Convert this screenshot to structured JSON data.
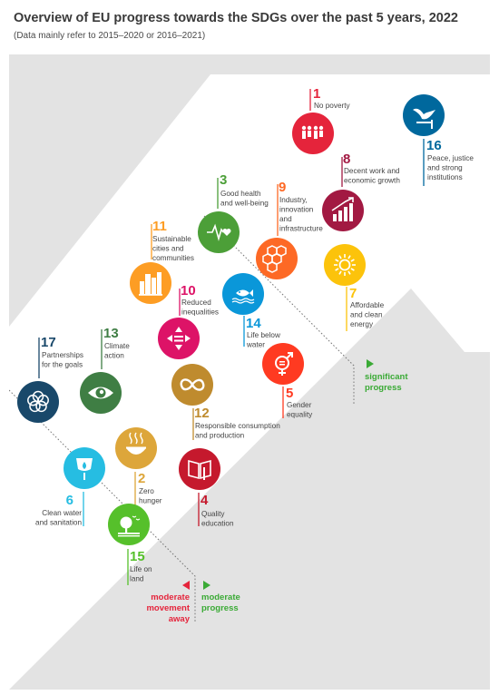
{
  "title": "Overview of EU progress towards the SDGs over the past 5 years, 2022",
  "subtitle": "(Data mainly refer to 2015–2020 or 2016–2021)",
  "legend": {
    "significant": [
      "significant",
      "progress"
    ],
    "moderate": [
      "moderate",
      "progress"
    ],
    "away": [
      "moderate",
      "movement",
      "away"
    ]
  },
  "goals": [
    {
      "n": "1",
      "lines": [
        "No poverty"
      ],
      "color": "#e5243b",
      "icon": "family-icon"
    },
    {
      "n": "2",
      "lines": [
        "Zero",
        "hunger"
      ],
      "color": "#dda63a",
      "icon": "bowl-icon"
    },
    {
      "n": "3",
      "lines": [
        "Good health",
        "and well-being"
      ],
      "color": "#4c9f38",
      "icon": "heartbeat-icon"
    },
    {
      "n": "4",
      "lines": [
        "Quality",
        "education"
      ],
      "color": "#c5192d",
      "icon": "book-icon"
    },
    {
      "n": "5",
      "lines": [
        "Gender",
        "equality"
      ],
      "color": "#ff3a21",
      "icon": "gender-icon"
    },
    {
      "n": "6",
      "lines": [
        "Clean water",
        "and sanitation"
      ],
      "color": "#26bde2",
      "icon": "water-drop-icon"
    },
    {
      "n": "7",
      "lines": [
        "Affordable",
        "and clean",
        "energy"
      ],
      "color": "#fcc30b",
      "icon": "sun-icon"
    },
    {
      "n": "8",
      "lines": [
        "Decent work and",
        "economic growth"
      ],
      "color": "#a21942",
      "icon": "growth-chart-icon"
    },
    {
      "n": "9",
      "lines": [
        "Industry,",
        "innovation",
        "and",
        "infrastructure"
      ],
      "color": "#fd6925",
      "icon": "cubes-icon"
    },
    {
      "n": "10",
      "lines": [
        "Reduced",
        "inequalities"
      ],
      "color": "#dd1367",
      "icon": "equality-icon"
    },
    {
      "n": "11",
      "lines": [
        "Sustainable",
        "cities and",
        "communities"
      ],
      "color": "#fd9d24",
      "icon": "city-icon"
    },
    {
      "n": "12",
      "lines": [
        "Responsible consumption",
        "and production"
      ],
      "color": "#bf8b2e",
      "icon": "infinity-icon"
    },
    {
      "n": "13",
      "lines": [
        "Climate",
        "action"
      ],
      "color": "#3f7e44",
      "icon": "eye-globe-icon"
    },
    {
      "n": "14",
      "lines": [
        "Life below",
        "water"
      ],
      "color": "#0a97d9",
      "icon": "fish-icon"
    },
    {
      "n": "15",
      "lines": [
        "Life on",
        "land"
      ],
      "color": "#56c02b",
      "icon": "tree-icon"
    },
    {
      "n": "16",
      "lines": [
        "Peace, justice",
        "and strong",
        "institutions"
      ],
      "color": "#00689d",
      "icon": "dove-icon"
    },
    {
      "n": "17",
      "lines": [
        "Partnerships",
        "for the goals"
      ],
      "color": "#19486a",
      "icon": "flower-icon"
    }
  ],
  "colors": {
    "significant": "#3aaa35",
    "moderate": "#3aaa35",
    "away": "#e5243b",
    "background": "#e3e3e3",
    "arrow": "#ffffff"
  }
}
